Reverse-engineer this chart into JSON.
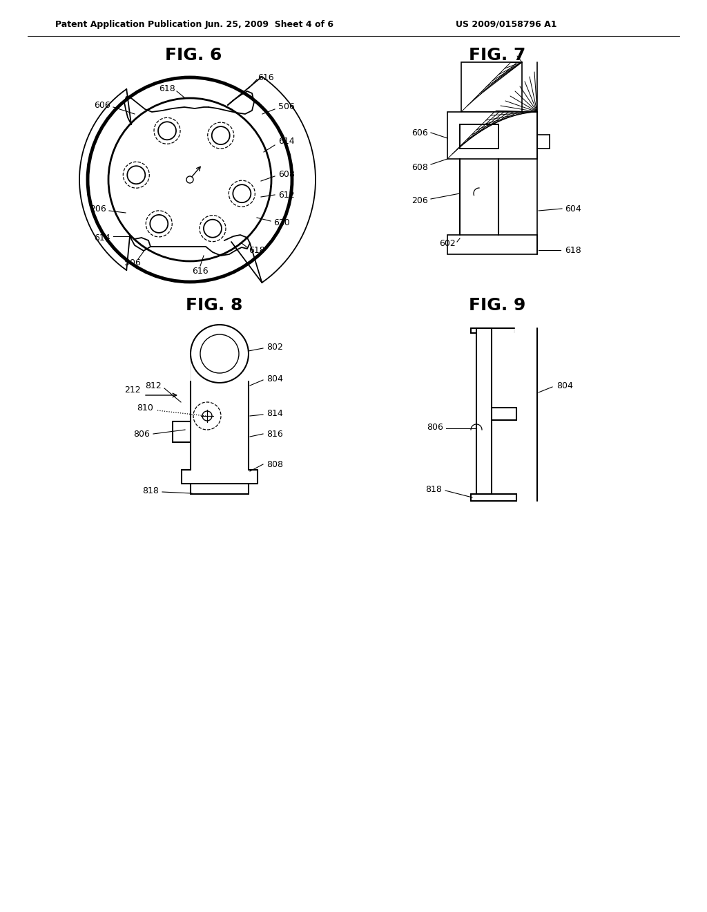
{
  "header_left": "Patent Application Publication",
  "header_mid": "Jun. 25, 2009  Sheet 4 of 6",
  "header_right": "US 2009/0158796 A1",
  "bg_color": "#ffffff",
  "line_color": "#000000",
  "fig6_title": "FIG. 6",
  "fig7_title": "FIG. 7",
  "fig8_title": "FIG. 8",
  "fig9_title": "FIG. 9"
}
